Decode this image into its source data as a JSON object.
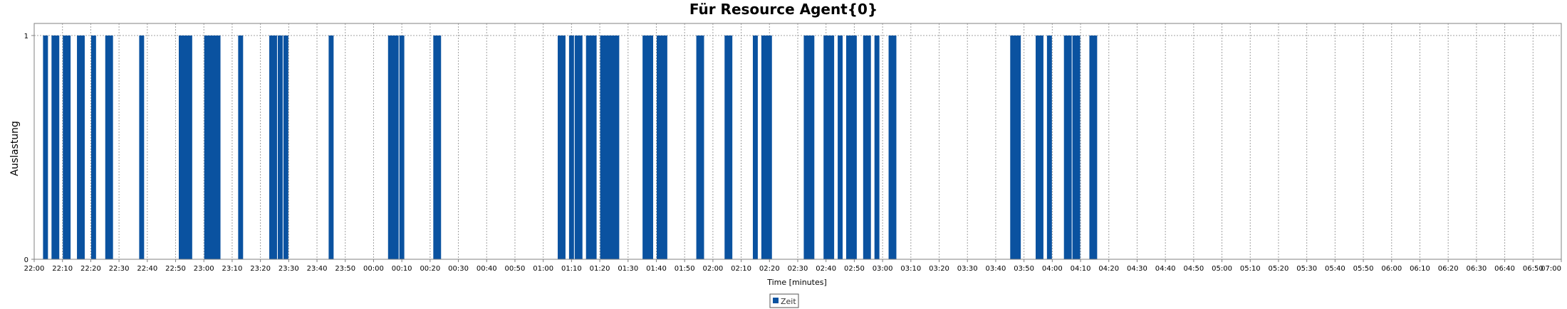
{
  "chart_data": {
    "type": "bar",
    "title": "Für Resource Agent{0}",
    "xlabel": "Time [minutes]",
    "ylabel": "Auslastung",
    "x_range": [
      "22:00",
      "07:00"
    ],
    "ylim": [
      0,
      1
    ],
    "y_ticks": [
      "0",
      "1"
    ],
    "x_ticks": [
      "22:00",
      "22:10",
      "22:20",
      "22:30",
      "22:40",
      "22:50",
      "23:00",
      "23:10",
      "23:20",
      "23:30",
      "23:40",
      "23:50",
      "00:00",
      "00:10",
      "00:20",
      "00:30",
      "00:40",
      "00:50",
      "01:00",
      "01:10",
      "01:20",
      "01:30",
      "01:40",
      "01:50",
      "02:00",
      "02:10",
      "02:20",
      "02:30",
      "02:40",
      "02:50",
      "03:00",
      "03:10",
      "03:20",
      "03:30",
      "03:40",
      "03:50",
      "04:00",
      "04:10",
      "04:20",
      "04:30",
      "04:40",
      "04:50",
      "05:00",
      "05:10",
      "05:20",
      "05:30",
      "05:40",
      "05:50",
      "06:00",
      "06:10",
      "06:20",
      "06:30",
      "06:40",
      "06:50",
      "07:00"
    ],
    "grid": true,
    "legend_position": "bottom",
    "series": [
      {
        "name": "Zeit",
        "color": "#0a52a0",
        "value": 1,
        "intervals": [
          [
            "22:03",
            "22:05"
          ],
          [
            "22:06",
            "22:09"
          ],
          [
            "22:10",
            "22:13"
          ],
          [
            "22:15",
            "22:18"
          ],
          [
            "22:20",
            "22:22"
          ],
          [
            "22:25",
            "22:28"
          ],
          [
            "22:37",
            "22:39"
          ],
          [
            "22:51",
            "22:56"
          ],
          [
            "23:00",
            "23:06"
          ],
          [
            "23:12",
            "23:14"
          ],
          [
            "23:23",
            "23:26"
          ],
          [
            "23:26",
            "23:28"
          ],
          [
            "23:28",
            "23:30"
          ],
          [
            "23:44",
            "23:46"
          ],
          [
            "00:05",
            "00:09"
          ],
          [
            "00:09",
            "00:11"
          ],
          [
            "00:21",
            "00:24"
          ],
          [
            "01:05",
            "01:08"
          ],
          [
            "01:09",
            "01:11"
          ],
          [
            "01:11",
            "01:14"
          ],
          [
            "01:15",
            "01:19"
          ],
          [
            "01:20",
            "01:27"
          ],
          [
            "01:35",
            "01:39"
          ],
          [
            "01:40",
            "01:44"
          ],
          [
            "01:54",
            "01:57"
          ],
          [
            "02:04",
            "02:07"
          ],
          [
            "02:14",
            "02:16"
          ],
          [
            "02:17",
            "02:21"
          ],
          [
            "02:32",
            "02:36"
          ],
          [
            "02:39",
            "02:43"
          ],
          [
            "02:44",
            "02:46"
          ],
          [
            "02:47",
            "02:51"
          ],
          [
            "02:53",
            "02:56"
          ],
          [
            "02:57",
            "02:59"
          ],
          [
            "03:02",
            "03:05"
          ],
          [
            "03:45",
            "03:49"
          ],
          [
            "03:54",
            "03:57"
          ],
          [
            "03:58",
            "04:00"
          ],
          [
            "04:04",
            "04:07"
          ],
          [
            "04:07",
            "04:10"
          ],
          [
            "04:13",
            "04:16"
          ]
        ]
      }
    ]
  }
}
